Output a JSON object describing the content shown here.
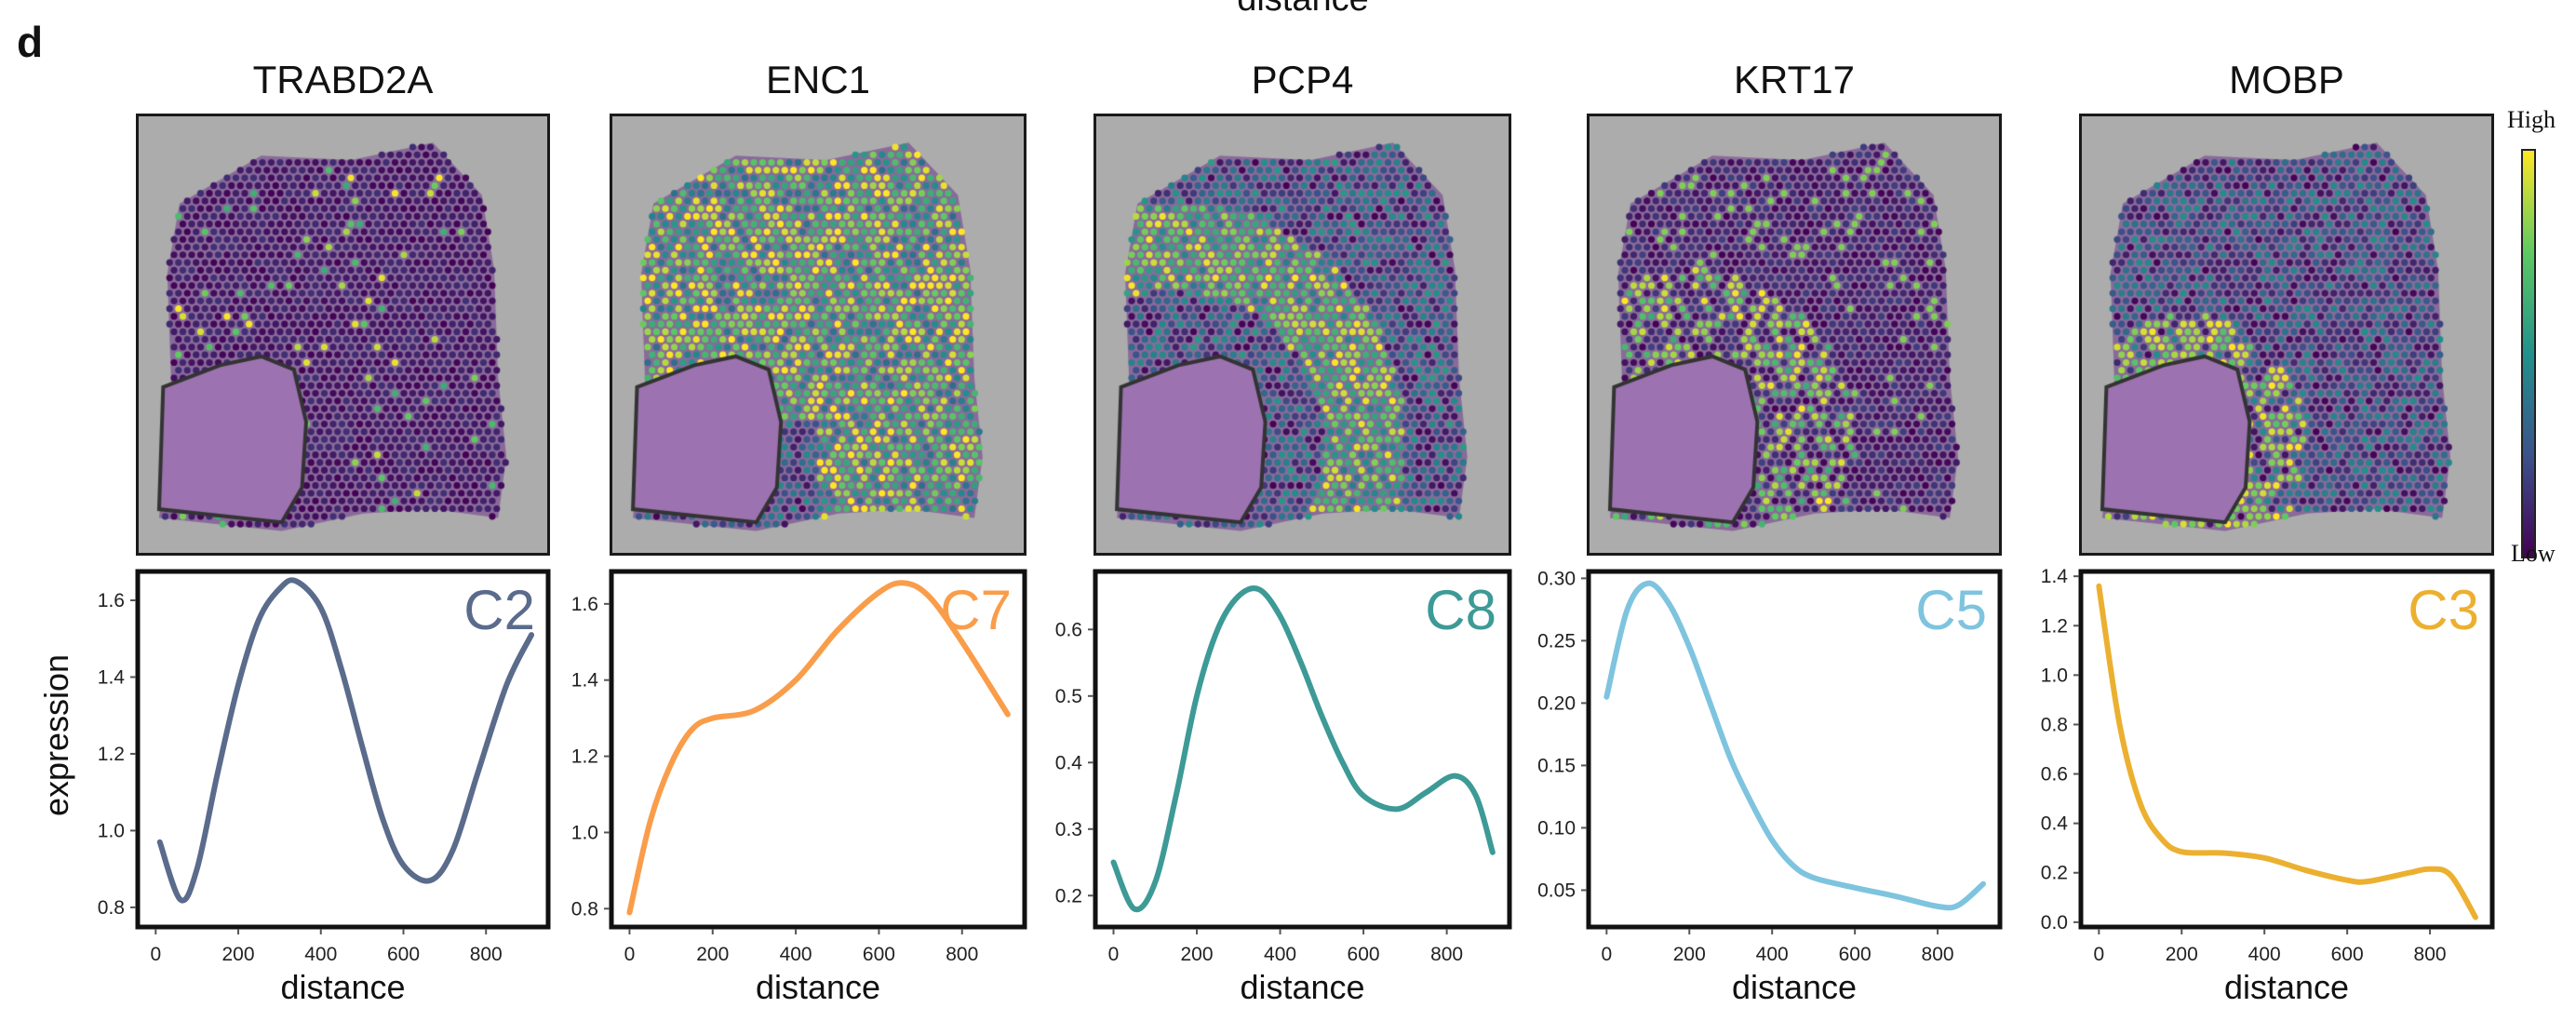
{
  "top_label": "distance",
  "panel_letter": "d",
  "colorbar": {
    "high_label": "High",
    "low_label": "Low",
    "colormap": [
      "#440154",
      "#3b528b",
      "#21918c",
      "#5ec962",
      "#fde725"
    ]
  },
  "chart_data": [
    {
      "type": "line",
      "title": "TRABD2A",
      "cluster": "C2",
      "color": "#5a6b8c",
      "xlabel": "distance",
      "ylabel": "expression",
      "xlim": [
        -48,
        955
      ],
      "ylim": [
        0.744,
        1.68
      ],
      "xticks": [
        0,
        200,
        400,
        600,
        800
      ],
      "yticks": [
        0.8,
        1.0,
        1.2,
        1.4,
        1.6
      ],
      "ytick_labels": [
        "0.8",
        "1.0",
        "1.2",
        "1.4",
        "1.6"
      ],
      "points": [
        [
          10,
          0.97
        ],
        [
          60,
          0.82
        ],
        [
          100,
          0.9
        ],
        [
          150,
          1.15
        ],
        [
          200,
          1.38
        ],
        [
          250,
          1.55
        ],
        [
          300,
          1.63
        ],
        [
          340,
          1.65
        ],
        [
          400,
          1.58
        ],
        [
          450,
          1.42
        ],
        [
          500,
          1.22
        ],
        [
          550,
          1.03
        ],
        [
          600,
          0.91
        ],
        [
          665,
          0.87
        ],
        [
          720,
          0.95
        ],
        [
          780,
          1.15
        ],
        [
          850,
          1.38
        ],
        [
          910,
          1.51
        ]
      ]
    },
    {
      "type": "line",
      "title": "ENC1",
      "cluster": "C7",
      "color": "#f99d4b",
      "xlabel": "distance",
      "ylabel": "",
      "xlim": [
        -48,
        955
      ],
      "ylim": [
        0.747,
        1.69
      ],
      "xticks": [
        0,
        200,
        400,
        600,
        800
      ],
      "yticks": [
        0.8,
        1.0,
        1.2,
        1.4,
        1.6
      ],
      "ytick_labels": [
        "0.8",
        "1.0",
        "1.2",
        "1.4",
        "1.6"
      ],
      "points": [
        [
          0,
          0.79
        ],
        [
          50,
          1.03
        ],
        [
          100,
          1.18
        ],
        [
          150,
          1.27
        ],
        [
          200,
          1.3
        ],
        [
          300,
          1.32
        ],
        [
          400,
          1.4
        ],
        [
          500,
          1.53
        ],
        [
          600,
          1.63
        ],
        [
          660,
          1.655
        ],
        [
          720,
          1.62
        ],
        [
          800,
          1.5
        ],
        [
          910,
          1.31
        ]
      ]
    },
    {
      "type": "line",
      "title": "PCP4",
      "cluster": "C8",
      "color": "#3d9a96",
      "xlabel": "distance",
      "ylabel": "",
      "xlim": [
        -48,
        955
      ],
      "ylim": [
        0.15,
        0.69
      ],
      "xticks": [
        0,
        200,
        400,
        600,
        800
      ],
      "yticks": [
        0.2,
        0.3,
        0.4,
        0.5,
        0.6
      ],
      "ytick_labels": [
        "0.2",
        "0.3",
        "0.4",
        "0.5",
        "0.6"
      ],
      "points": [
        [
          0,
          0.25
        ],
        [
          50,
          0.18
        ],
        [
          100,
          0.22
        ],
        [
          150,
          0.35
        ],
        [
          200,
          0.5
        ],
        [
          250,
          0.6
        ],
        [
          300,
          0.65
        ],
        [
          350,
          0.66
        ],
        [
          400,
          0.62
        ],
        [
          450,
          0.55
        ],
        [
          500,
          0.47
        ],
        [
          550,
          0.4
        ],
        [
          600,
          0.35
        ],
        [
          680,
          0.33
        ],
        [
          750,
          0.355
        ],
        [
          820,
          0.38
        ],
        [
          870,
          0.35
        ],
        [
          910,
          0.265
        ]
      ]
    },
    {
      "type": "line",
      "title": "KRT17",
      "cluster": "C5",
      "color": "#7ec4df",
      "xlabel": "distance",
      "ylabel": "",
      "xlim": [
        -48,
        955
      ],
      "ylim": [
        0.019,
        0.307
      ],
      "xticks": [
        0,
        200,
        400,
        600,
        800
      ],
      "yticks": [
        0.05,
        0.1,
        0.15,
        0.2,
        0.25,
        0.3
      ],
      "ytick_labels": [
        "0.05",
        "0.10",
        "0.15",
        "0.20",
        "0.25",
        "0.30"
      ],
      "points": [
        [
          0,
          0.205
        ],
        [
          50,
          0.275
        ],
        [
          100,
          0.296
        ],
        [
          150,
          0.28
        ],
        [
          200,
          0.245
        ],
        [
          250,
          0.2
        ],
        [
          300,
          0.155
        ],
        [
          350,
          0.12
        ],
        [
          400,
          0.09
        ],
        [
          450,
          0.07
        ],
        [
          500,
          0.06
        ],
        [
          600,
          0.052
        ],
        [
          700,
          0.045
        ],
        [
          800,
          0.037
        ],
        [
          850,
          0.038
        ],
        [
          910,
          0.055
        ]
      ]
    },
    {
      "type": "line",
      "title": "MOBP",
      "cluster": "C3",
      "color": "#ecb030",
      "xlabel": "distance",
      "ylabel": "",
      "xlim": [
        -48,
        955
      ],
      "ylim": [
        -0.027,
        1.427
      ],
      "xticks": [
        0,
        200,
        400,
        600,
        800
      ],
      "yticks": [
        0,
        0.2,
        0.4,
        0.6,
        0.8,
        1.0,
        1.2,
        1.4
      ],
      "ytick_labels": [
        "0.0",
        "0.2",
        "0.4",
        "0.6",
        "0.8",
        "1.0",
        "1.2",
        "1.4"
      ],
      "points": [
        [
          0,
          1.36
        ],
        [
          50,
          0.8
        ],
        [
          100,
          0.48
        ],
        [
          150,
          0.34
        ],
        [
          200,
          0.285
        ],
        [
          300,
          0.28
        ],
        [
          400,
          0.26
        ],
        [
          500,
          0.21
        ],
        [
          600,
          0.17
        ],
        [
          650,
          0.165
        ],
        [
          750,
          0.2
        ],
        [
          800,
          0.215
        ],
        [
          850,
          0.19
        ],
        [
          910,
          0.02
        ]
      ]
    }
  ]
}
